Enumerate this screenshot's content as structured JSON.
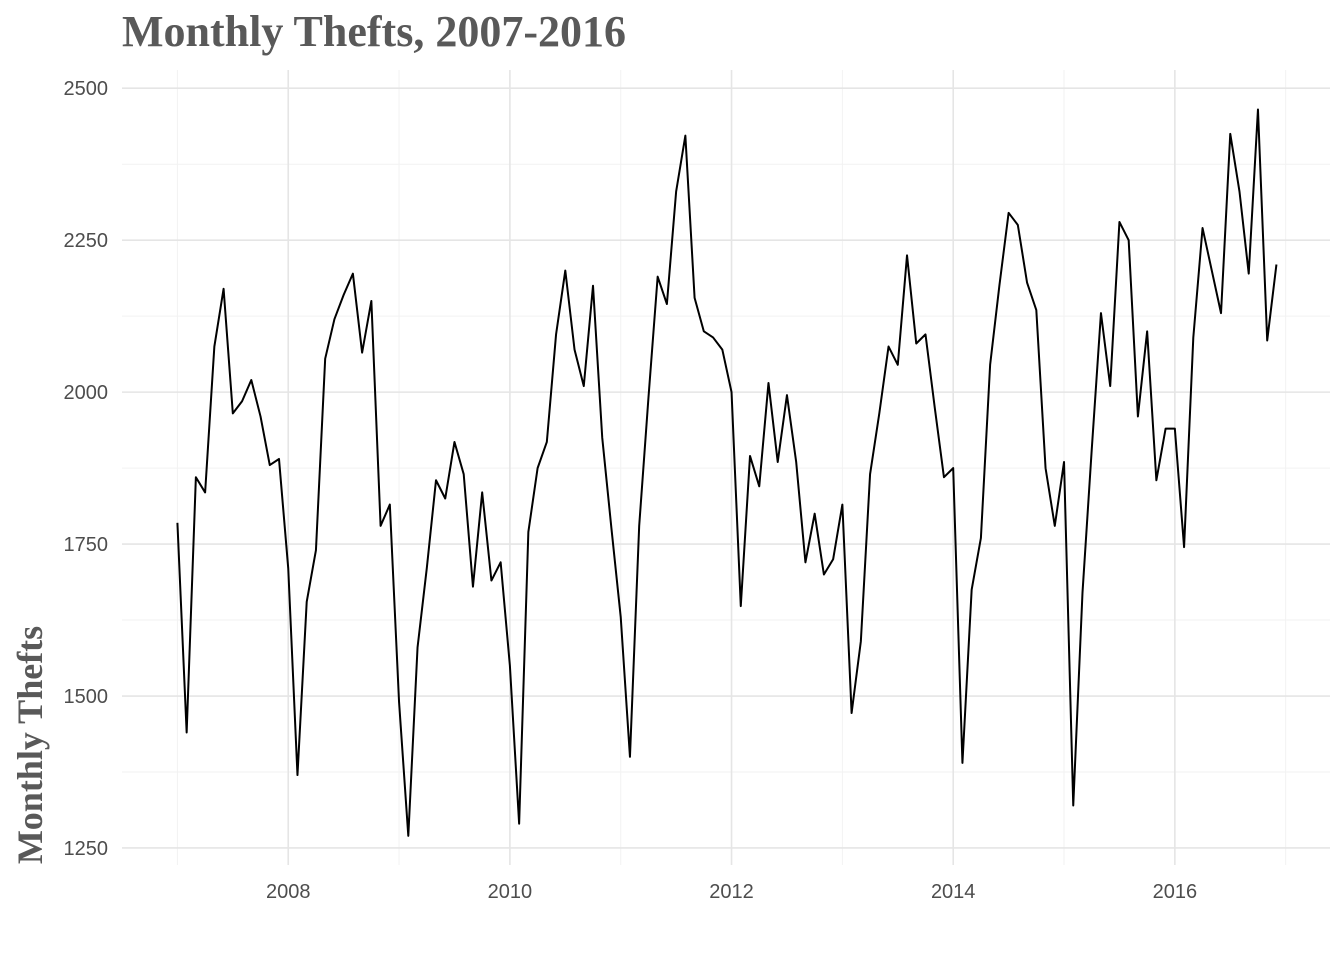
{
  "chart_data": {
    "type": "line",
    "title": "Monthly Thefts, 2007-2016",
    "xlabel": "",
    "ylabel": "Monthly Thefts",
    "x_start": "2007-01",
    "x_frequency": "monthly",
    "xlim": [
      2006.5,
      2017.4
    ],
    "ylim": [
      1222,
      2530
    ],
    "x_ticks": [
      "2008",
      "2010",
      "2012",
      "2014",
      "2016"
    ],
    "y_ticks": [
      "1250",
      "1500",
      "1750",
      "2000",
      "2250",
      "2500"
    ],
    "grid": true,
    "legend": "none",
    "series": [
      {
        "line_color": "#000000",
        "values": [
          1785,
          1440,
          1860,
          1835,
          2075,
          2170,
          1965,
          1985,
          2020,
          1960,
          1880,
          1890,
          1710,
          1370,
          1655,
          1740,
          2055,
          2120,
          2160,
          2195,
          2065,
          2150,
          1780,
          1815,
          1490,
          1270,
          1580,
          1710,
          1855,
          1825,
          1918,
          1865,
          1680,
          1835,
          1690,
          1720,
          1550,
          1290,
          1770,
          1875,
          1918,
          2095,
          2200,
          2070,
          2010,
          2175,
          1925,
          1775,
          1630,
          1400,
          1780,
          1990,
          2190,
          2145,
          2330,
          2422,
          2155,
          2100,
          2090,
          2070,
          2000,
          1648,
          1895,
          1845,
          2015,
          1885,
          1995,
          1885,
          1720,
          1800,
          1700,
          1725,
          1815,
          1472,
          1590,
          1865,
          1965,
          2075,
          2045,
          2225,
          2080,
          2095,
          1975,
          1860,
          1875,
          1390,
          1675,
          1760,
          2045,
          2175,
          2295,
          2275,
          2180,
          2135,
          1875,
          1780,
          1885,
          1320,
          1670,
          1905,
          2130,
          2010,
          2280,
          2250,
          1960,
          2100,
          1855,
          1940,
          1940,
          1745,
          2090,
          2270,
          2200,
          2130,
          2425,
          2330,
          2195,
          2465,
          2085,
          2210
        ]
      }
    ]
  }
}
